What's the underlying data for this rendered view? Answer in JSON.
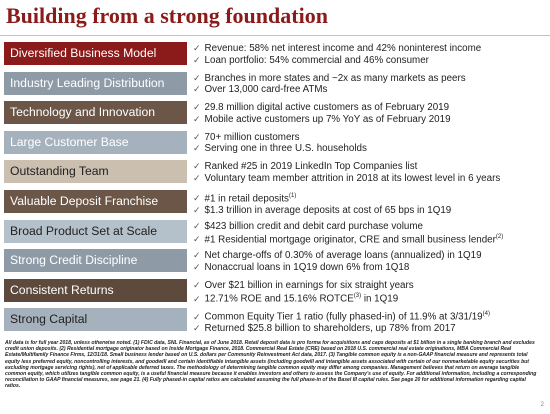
{
  "title": "Building from a strong foundation",
  "rows": [
    {
      "label": "Diversified Business Model",
      "bullets": [
        {
          "text": "Revenue: 58% net interest income and 42% noninterest income"
        },
        {
          "text": "Loan portfolio: 54% commercial and 46% consumer"
        }
      ]
    },
    {
      "label": "Industry Leading Distribution",
      "bullets": [
        {
          "text": "Branches in more states and ~2x as many markets as peers"
        },
        {
          "text": "Over 13,000 card-free ATMs"
        }
      ]
    },
    {
      "label": "Technology and Innovation",
      "bullets": [
        {
          "text": "29.8 million digital active customers as of February 2019"
        },
        {
          "text": "Mobile active customers up 7% YoY as of February 2019"
        }
      ]
    },
    {
      "label": "Large Customer Base",
      "bullets": [
        {
          "text": "70+ million customers"
        },
        {
          "text": "Serving one in three U.S. households"
        }
      ]
    },
    {
      "label": "Outstanding Team",
      "bullets": [
        {
          "text": "Ranked #25 in 2019 LinkedIn Top Companies list"
        },
        {
          "text": "Voluntary team member attrition in 2018 at its lowest level in 6 years"
        }
      ]
    },
    {
      "label": "Valuable Deposit Franchise",
      "bullets": [
        {
          "text": "#1 in retail deposits",
          "sup": "(1)"
        },
        {
          "text": "$1.3 trillion in average deposits at cost of 65 bps in 1Q19"
        }
      ]
    },
    {
      "label": "Broad Product Set at Scale",
      "bullets": [
        {
          "text": "$423 billion credit and debit card purchase volume"
        },
        {
          "text": "#1 Residential mortgage originator, CRE and small business lender",
          "sup": "(2)"
        }
      ]
    },
    {
      "label": "Strong Credit Discipline",
      "bullets": [
        {
          "text": "Net charge-offs of 0.30% of average loans (annualized) in 1Q19"
        },
        {
          "text": "Nonaccrual loans in 1Q19 down 6% from 1Q18"
        }
      ]
    },
    {
      "label": "Consistent Returns",
      "bullets": [
        {
          "text": "Over $21 billion in earnings for six straight years"
        },
        {
          "text": "12.71% ROE and 15.16% ROTCE",
          "sup": "(3)",
          "after": " in 1Q19"
        }
      ]
    },
    {
      "label": "Strong Capital",
      "bullets": [
        {
          "text": "Common Equity Tier 1 ratio (fully phased-in) of 11.9% at 3/31/19",
          "sup": "(4)"
        },
        {
          "text": "Returned $25.8 billion to shareholders, up 78% from 2017"
        }
      ]
    }
  ],
  "footnote": "All data is for full year 2018, unless otherwise noted. (1) FDIC data, SNL Financial, as of June 2018. Retail deposit data is pro forma for acquisitions and caps deposits at $1 billion in a single banking branch and excludes credit union deposits. (2) Residential mortgage originator based on Inside Mortgage Finance, 2018. Commercial Real Estate (CRE) based on 2018 U.S. commercial real estate originations, MBA Commercial Real Estate/Multifamily Finance Firms, 12/31/18. Small business lender based on U.S. dollars per Community Reinvestment Act data, 2017. (3) Tangible common equity is a non-GAAP financial measure and represents total equity less preferred equity, noncontrolling interests, and goodwill and certain identifiable intangible assets (including goodwill and intangible assets associated with certain of our nonmarketable equity securities but excluding mortgage servicing rights), net of applicable deferred taxes. The methodology of determining tangible common equity may differ among companies. Management believes that return on average tangible common equity, which utilizes tangible common equity, is a useful financial measure because it enables investors and others to assess the Company's use of equity. For additional information, including a corresponding reconciliation to GAAP financial measures, see page 21. (4) Fully phased-in capital ratios are calculated assuming the full phase-in of the Basel III capital rules. See page 20 for additional information regarding capital ratios.",
  "page_number": "2"
}
